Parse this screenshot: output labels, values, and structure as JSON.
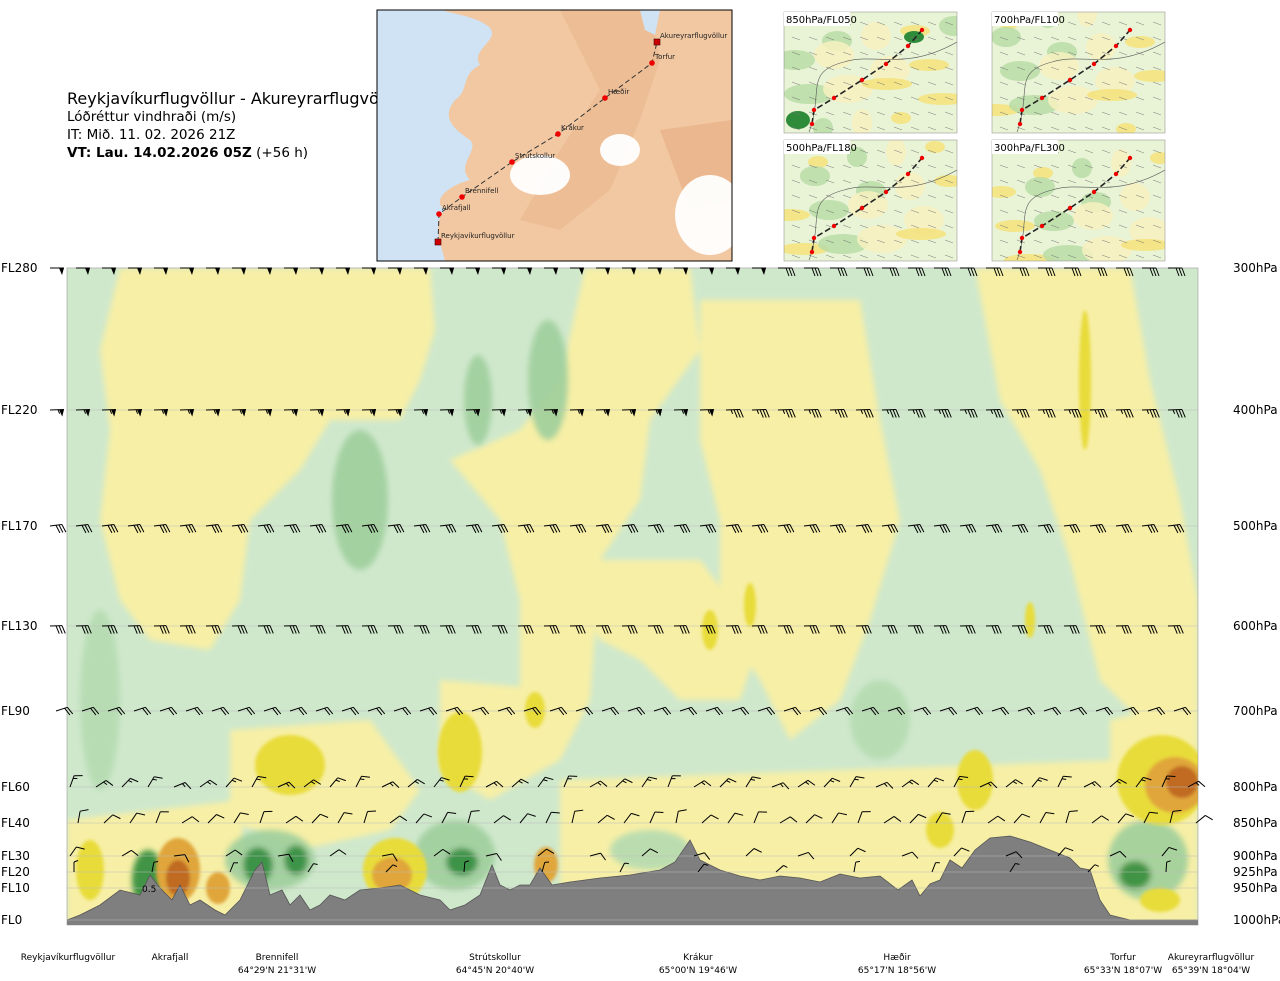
{
  "header": {
    "route": "Reykjavíkurflugvöllur - Akureyrarflugvöllur",
    "subtitle": "Lóðréttur vindhraði (m/s)",
    "issue_time": "IT: Mið. 11. 02. 2026 21Z",
    "valid_time_bold": "VT: Lau. 14.02.2026 05Z",
    "valid_time_lead": "(+56 h)"
  },
  "route_map": {
    "points": [
      {
        "name": "Reykjavíkurflugvöllur",
        "type": "airport"
      },
      {
        "name": "Akrafjall",
        "type": "waypoint"
      },
      {
        "name": "Brennifell",
        "type": "waypoint"
      },
      {
        "name": "Strútskollur",
        "type": "waypoint"
      },
      {
        "name": "Krákur",
        "type": "waypoint"
      },
      {
        "name": "Hæðir",
        "type": "waypoint"
      },
      {
        "name": "Torfur",
        "type": "waypoint"
      },
      {
        "name": "Akureyrarflugvöllur",
        "type": "airport"
      }
    ]
  },
  "panels": [
    {
      "label": "850hPa/FL050"
    },
    {
      "label": "700hPa/FL100"
    },
    {
      "label": "500hPa/FL180"
    },
    {
      "label": "300hPa/FL300"
    }
  ],
  "colors": {
    "pale_green": "#cfe8cc",
    "green": "#9fcf9c",
    "dark_green": "#2e8b3a",
    "pale_yellow": "#f7efa6",
    "yellow": "#e8dc3a",
    "orange": "#e0a63a",
    "brown": "#c06a20",
    "terrain": "#7f7f7f",
    "land": "#f2c39a",
    "water": "#cfe3f4"
  },
  "chart_data": {
    "type": "heatmap",
    "quantity": "Lóðréttur vindhraði (m/s)",
    "y_axis_left": [
      "FL280",
      "FL220",
      "FL170",
      "FL130",
      "FL90",
      "FL60",
      "FL40",
      "FL30",
      "FL20",
      "FL10",
      "FL0"
    ],
    "y_axis_right": [
      "300hPa",
      "400hPa",
      "500hPa",
      "600hPa",
      "700hPa",
      "800hPa",
      "850hPa",
      "900hPa",
      "925hPa",
      "950hPa",
      "1000hPa"
    ],
    "x_waypoints": [
      {
        "name": "Reykjavíkurflugvöllur",
        "coord": ""
      },
      {
        "name": "Akrafjall",
        "coord": ""
      },
      {
        "name": "Brennifell",
        "coord": "64°29'N 21°31'W"
      },
      {
        "name": "Strútskollur",
        "coord": "64°45'N 20°40'W"
      },
      {
        "name": "Krákur",
        "coord": "65°00'N 19°46'W"
      },
      {
        "name": "Hæðir",
        "coord": "65°17'N 18°56'W"
      },
      {
        "name": "Torfur",
        "coord": "65°33'N 18°07'W"
      },
      {
        "name": "Akureyrarflugvöllur",
        "coord": "65°39'N 18°04'W"
      }
    ],
    "contour_label": "0.5"
  }
}
